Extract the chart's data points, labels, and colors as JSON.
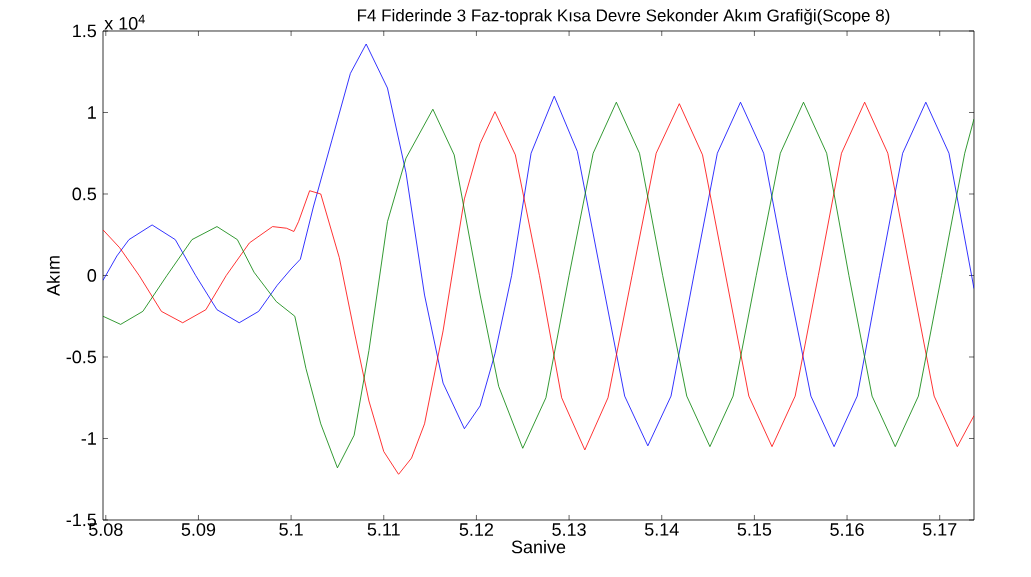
{
  "chart_data": {
    "type": "line",
    "title": "F4 Fiderinde 3 Faz-toprak Kısa Devre Sekonder Akım Grafiği(Scope 8)",
    "xlabel": "Sanive",
    "ylabel": "Akım",
    "annotations": [
      "x 10$^{4}$"
    ],
    "xlim": [
      5.0797,
      5.1737
    ],
    "ylim": [
      -1.5,
      1.5
    ],
    "xticks": [
      5.08,
      5.09,
      5.1,
      5.11,
      5.12,
      5.13,
      5.14,
      5.15,
      5.16,
      5.17
    ],
    "yticks": [
      -1.5,
      -1,
      -0.5,
      0,
      0.5,
      1,
      1.5
    ],
    "series": [
      {
        "color": "#0000ff",
        "x": [
          5.0797,
          5.0812,
          5.0825,
          5.085,
          5.0875,
          5.0897,
          5.092,
          5.0944,
          5.0965,
          5.0985,
          5.1,
          5.101,
          5.1024,
          5.1044,
          5.1064,
          5.1081,
          5.1104,
          5.1124,
          5.1144,
          5.1164,
          5.1187,
          5.1204,
          5.122,
          5.1238,
          5.1259,
          5.1284,
          5.1309,
          5.1334,
          5.136,
          5.1385,
          5.141,
          5.1435,
          5.146,
          5.1485,
          5.151,
          5.1535,
          5.1561,
          5.1586,
          5.1611,
          5.1635,
          5.166,
          5.1685,
          5.171,
          5.1737
        ],
        "values": [
          -0.03,
          0.12,
          0.22,
          0.31,
          0.22,
          0.0,
          -0.21,
          -0.29,
          -0.22,
          -0.06,
          0.04,
          0.1,
          0.42,
          0.83,
          1.24,
          1.42,
          1.15,
          0.63,
          -0.12,
          -0.66,
          -0.94,
          -0.8,
          -0.48,
          0.0,
          0.75,
          1.1,
          0.76,
          0.02,
          -0.74,
          -1.045,
          -0.74,
          0.01,
          0.75,
          1.063,
          0.75,
          0.0,
          -0.74,
          -1.05,
          -0.74,
          0.0,
          0.75,
          1.063,
          0.75,
          -0.08
        ]
      },
      {
        "color": "#ff0000",
        "x": [
          5.0797,
          5.0815,
          5.0836,
          5.086,
          5.0883,
          5.0908,
          5.093,
          5.0955,
          5.098,
          5.0995,
          5.1003,
          5.1008,
          5.102,
          5.1032,
          5.1052,
          5.1068,
          5.1084,
          5.11,
          5.1116,
          5.113,
          5.1144,
          5.1164,
          5.1187,
          5.1204,
          5.122,
          5.1242,
          5.1268,
          5.1292,
          5.1317,
          5.1342,
          5.1368,
          5.1394,
          5.1419,
          5.1444,
          5.1469,
          5.1494,
          5.1519,
          5.1544,
          5.1569,
          5.1594,
          5.1619,
          5.1644,
          5.1669,
          5.1694,
          5.1719,
          5.1737
        ],
        "values": [
          0.28,
          0.17,
          0.0,
          -0.22,
          -0.29,
          -0.21,
          0.0,
          0.2,
          0.3,
          0.29,
          0.27,
          0.33,
          0.52,
          0.5,
          0.11,
          -0.34,
          -0.77,
          -1.08,
          -1.22,
          -1.12,
          -0.91,
          -0.34,
          0.47,
          0.81,
          1.005,
          0.74,
          0.0,
          -0.75,
          -1.07,
          -0.75,
          0.0,
          0.75,
          1.054,
          0.74,
          0.0,
          -0.74,
          -1.05,
          -0.74,
          0.0,
          0.75,
          1.063,
          0.75,
          0.0,
          -0.74,
          -1.05,
          -0.86
        ]
      },
      {
        "color": "#008000",
        "x": [
          5.0797,
          5.0816,
          5.084,
          5.0866,
          5.0893,
          5.092,
          5.0942,
          5.096,
          5.0984,
          5.1004,
          5.1016,
          5.1032,
          5.105,
          5.1068,
          5.1084,
          5.1104,
          5.1124,
          5.1153,
          5.1176,
          5.1204,
          5.1224,
          5.125,
          5.1275,
          5.13,
          5.1326,
          5.1351,
          5.1376,
          5.1401,
          5.1427,
          5.1452,
          5.1477,
          5.1502,
          5.1528,
          5.1553,
          5.1578,
          5.1602,
          5.1627,
          5.1652,
          5.1677,
          5.1702,
          5.1727,
          5.1737
        ],
        "values": [
          -0.25,
          -0.3,
          -0.22,
          0.0,
          0.22,
          0.3,
          0.22,
          0.02,
          -0.16,
          -0.25,
          -0.57,
          -0.91,
          -1.18,
          -0.98,
          -0.46,
          0.33,
          0.72,
          1.02,
          0.74,
          -0.12,
          -0.68,
          -1.06,
          -0.75,
          0.0,
          0.75,
          1.063,
          0.75,
          0.0,
          -0.74,
          -1.05,
          -0.74,
          0.0,
          0.75,
          1.063,
          0.75,
          0.0,
          -0.74,
          -1.05,
          -0.74,
          0.0,
          0.75,
          0.96
        ]
      }
    ]
  }
}
